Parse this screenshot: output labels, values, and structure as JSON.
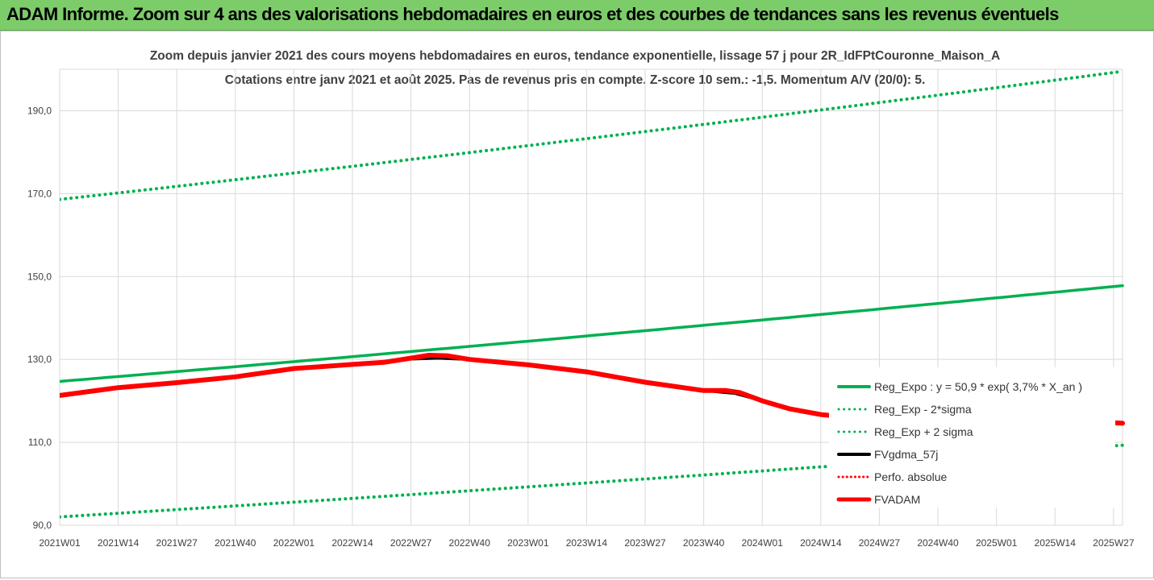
{
  "header": {
    "title": "ADAM Informe. Zoom sur 4 ans des valorisations hebdomadaires en euros et des courbes de tendances sans les revenus éventuels"
  },
  "chart_data": {
    "type": "line",
    "title": "",
    "subtitle_lines": [
      "Zoom depuis janvier 2021 des cours moyens hebdomadaires en euros, tendance exponentielle, lissage 57 j pour 2R_IdFPtCouronne_Maison_A",
      "Cotations entre janv 2021 et août 2025. Pas de revenus pris en compte. Z-score 10 sem.: -1,5. Momentum A/V (20/0): 5."
    ],
    "xlabel": "",
    "ylabel": "",
    "ylim": [
      90,
      200
    ],
    "y_ticks": [
      "90,0",
      "110,0",
      "130,0",
      "150,0",
      "170,0",
      "190,0"
    ],
    "y_tick_values": [
      90,
      110,
      130,
      150,
      170,
      190
    ],
    "x_ticks": [
      "2021W01",
      "2021W14",
      "2021W27",
      "2021W40",
      "2022W01",
      "2022W14",
      "2022W27",
      "2022W40",
      "2023W01",
      "2023W14",
      "2023W27",
      "2023W40",
      "2024W01",
      "2024W14",
      "2024W27",
      "2024W40",
      "2025W01",
      "2025W14",
      "2025W27"
    ],
    "x_tick_weeks": [
      0,
      13,
      26,
      39,
      52,
      65,
      78,
      91,
      104,
      117,
      130,
      143,
      156,
      169,
      182,
      195,
      208,
      221,
      234
    ],
    "x_range_weeks": [
      0,
      236
    ],
    "grid": "vertical-and-horizontal",
    "legend_position": "right",
    "series": [
      {
        "name": "Reg_Expo : y = 50,9 * exp( 3,7% *  X_an )",
        "style": "solid",
        "color": "#00b050",
        "x": [
          0,
          236
        ],
        "values": [
          124.7,
          147.8
        ],
        "curve": "exponential"
      },
      {
        "name": "Reg_Exp - 2*sigma",
        "style": "dotted",
        "color": "#00b050",
        "x": [
          0,
          236
        ],
        "values": [
          92.0,
          109.3
        ],
        "curve": "exponential"
      },
      {
        "name": "Reg_Exp + 2 sigma",
        "style": "dotted",
        "color": "#00b050",
        "x": [
          0,
          236
        ],
        "values": [
          168.6,
          199.5
        ],
        "curve": "exponential"
      },
      {
        "name": "FVgdma_57j",
        "style": "solid",
        "color": "#000000",
        "x": [
          0,
          13,
          26,
          39,
          52,
          65,
          78,
          84,
          91,
          104,
          117,
          130,
          143,
          150,
          156,
          162,
          169,
          176,
          182,
          188,
          195,
          202,
          208,
          212,
          216,
          221,
          228,
          234,
          236
        ],
        "values": [
          121.3,
          123.2,
          124.4,
          125.8,
          127.8,
          128.8,
          130.1,
          130.3,
          130.0,
          128.7,
          127.0,
          124.5,
          122.5,
          121.8,
          120.0,
          118.3,
          116.7,
          116.0,
          115.8,
          115.5,
          115.0,
          114.8,
          114.5,
          115.2,
          115.3,
          115.3,
          115.0,
          114.7,
          114.6
        ]
      },
      {
        "name": "Perfo. absolue",
        "style": "dotted",
        "color": "#ff0000",
        "x": [],
        "values": []
      },
      {
        "name": "FVADAM",
        "style": "solid",
        "color": "#ff0000",
        "x": [
          0,
          13,
          26,
          39,
          52,
          65,
          72,
          78,
          82,
          86,
          91,
          104,
          117,
          130,
          143,
          148,
          151,
          156,
          162,
          169,
          172,
          176,
          182,
          185,
          188,
          192,
          195,
          200,
          205,
          208,
          212,
          216,
          221,
          228,
          234,
          236
        ],
        "values": [
          121.3,
          123.2,
          124.4,
          125.8,
          127.8,
          128.8,
          129.3,
          130.3,
          131.0,
          130.9,
          130.0,
          128.7,
          127.0,
          124.5,
          122.5,
          122.5,
          122.0,
          120.0,
          118.1,
          116.7,
          116.4,
          115.8,
          116.3,
          116.3,
          116.6,
          116.4,
          115.6,
          115.0,
          114.4,
          114.0,
          115.2,
          115.4,
          115.5,
          115.1,
          114.7,
          114.6
        ]
      }
    ]
  }
}
